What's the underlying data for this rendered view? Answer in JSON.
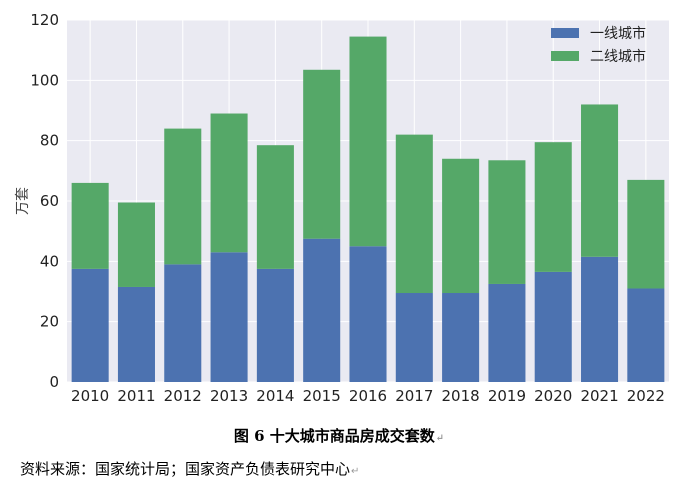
{
  "chart_data": {
    "type": "bar",
    "stacked": true,
    "categories": [
      "2010",
      "2011",
      "2012",
      "2013",
      "2014",
      "2015",
      "2016",
      "2017",
      "2018",
      "2019",
      "2020",
      "2021",
      "2022"
    ],
    "series": [
      {
        "name": "一线城市",
        "values": [
          37.5,
          31.5,
          39,
          43,
          37.5,
          47.5,
          45,
          29.5,
          29.5,
          32.5,
          36.5,
          41.5,
          31
        ],
        "color": "#4c72b0"
      },
      {
        "name": "二线城市",
        "values": [
          28.5,
          28,
          45,
          46,
          41,
          56,
          69.5,
          52.5,
          44.5,
          41,
          43,
          50.5,
          36
        ],
        "color": "#55a868"
      }
    ],
    "ylabel": "万套",
    "ylim": [
      0,
      120
    ],
    "yticks": [
      0,
      20,
      40,
      60,
      80,
      100,
      120
    ],
    "grid": true,
    "legend": "top-right"
  },
  "caption": "图 6  十大城市商品房成交套数",
  "source": "资料来源：国家统计局；国家资产负债表研究中心"
}
